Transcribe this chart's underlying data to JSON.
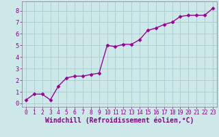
{
  "x": [
    0,
    1,
    2,
    3,
    4,
    5,
    6,
    7,
    8,
    9,
    10,
    11,
    12,
    13,
    14,
    15,
    16,
    17,
    18,
    19,
    20,
    21,
    22,
    23
  ],
  "y": [
    0.3,
    0.8,
    0.8,
    0.3,
    1.5,
    2.2,
    2.35,
    2.35,
    2.5,
    2.6,
    5.0,
    4.9,
    5.1,
    5.1,
    5.5,
    6.3,
    6.5,
    6.8,
    7.0,
    7.5,
    7.6,
    7.6,
    7.6,
    8.2
  ],
  "line_color": "#990099",
  "marker": "D",
  "marker_size": 2.5,
  "bg_color": "#cce8e8",
  "grid_color": "#aacccc",
  "xlabel": "Windchill (Refroidissement éolien,°C)",
  "xlabel_color": "#880088",
  "tick_color": "#880088",
  "xlim": [
    -0.5,
    23.5
  ],
  "ylim": [
    -0.3,
    8.8
  ],
  "yticks": [
    0,
    1,
    2,
    3,
    4,
    5,
    6,
    7,
    8
  ],
  "xticks": [
    0,
    1,
    2,
    3,
    4,
    5,
    6,
    7,
    8,
    9,
    10,
    11,
    12,
    13,
    14,
    15,
    16,
    17,
    18,
    19,
    20,
    21,
    22,
    23
  ],
  "tick_fontsize": 5.8,
  "xlabel_fontsize": 7.0,
  "line_width": 1.0
}
